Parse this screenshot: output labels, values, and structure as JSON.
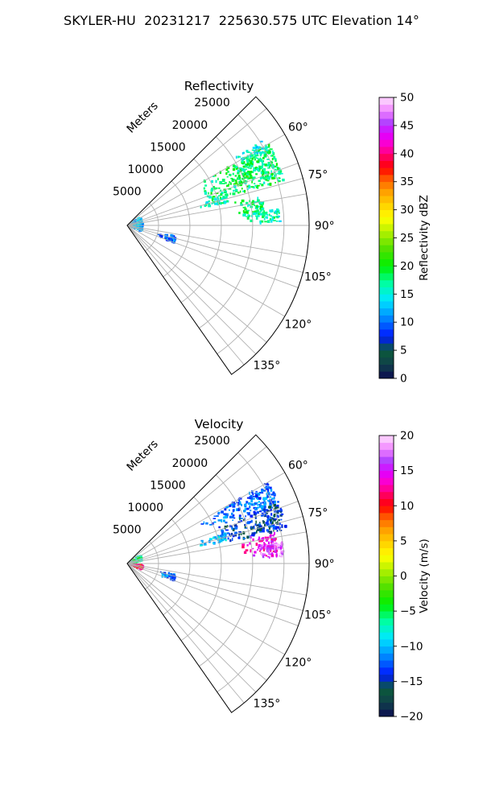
{
  "figure": {
    "title": "SKYLER-HU  20231217  225630.575 UTC Elevation 14°"
  },
  "chart_data": [
    {
      "type": "polar-sector",
      "title": "Reflectivity",
      "radial_label": "Meters",
      "radial_ticks": [
        5000,
        10000,
        15000,
        20000,
        25000
      ],
      "radial_tick_labels": [
        "5000",
        "10000",
        "15000",
        "20000",
        "25000"
      ],
      "r_max": 29000,
      "azimuth_range_deg": [
        45,
        145
      ],
      "azimuth_ticks_deg": [
        60,
        75,
        90,
        105,
        120,
        135
      ],
      "azimuth_tick_labels": [
        "60°",
        "75°",
        "90°",
        "105°",
        "120°",
        "135°"
      ],
      "grid": true,
      "colorbar": {
        "label": "Reflectivity dBZ",
        "range": [
          0,
          50
        ],
        "ticks": [
          0,
          5,
          10,
          15,
          20,
          25,
          30,
          35,
          40,
          45,
          50
        ],
        "tick_labels": [
          "0",
          "5",
          "10",
          "15",
          "20",
          "25",
          "30",
          "35",
          "40",
          "45",
          "50"
        ]
      },
      "echo_regions": [
        {
          "az_range": [
            60,
            74
          ],
          "r_range": [
            12500,
            26000
          ],
          "value": 18
        },
        {
          "az_range": [
            66,
            70
          ],
          "r_range": [
            16000,
            21500
          ],
          "value": 20
        },
        {
          "az_range": [
            73,
            77
          ],
          "r_range": [
            11500,
            16500
          ],
          "value": 16
        },
        {
          "az_range": [
            78,
            86
          ],
          "r_range": [
            17500,
            22000
          ],
          "value": 18
        },
        {
          "az_range": [
            84,
            89
          ],
          "r_range": [
            19000,
            24500
          ],
          "value": 16
        },
        {
          "az_range": [
            58,
            62
          ],
          "r_range": [
            20000,
            25500
          ],
          "value": 15
        },
        {
          "az_range": [
            60,
            110
          ],
          "r_range": [
            300,
            2500
          ],
          "value": 12
        },
        {
          "az_range": [
            103,
            110
          ],
          "r_range": [
            5000,
            8000
          ],
          "value": 10
        }
      ]
    },
    {
      "type": "polar-sector",
      "title": "Velocity",
      "radial_label": "Meters",
      "radial_ticks": [
        5000,
        10000,
        15000,
        20000,
        25000
      ],
      "radial_tick_labels": [
        "5000",
        "10000",
        "15000",
        "20000",
        "25000"
      ],
      "r_max": 29000,
      "azimuth_range_deg": [
        45,
        145
      ],
      "azimuth_ticks_deg": [
        60,
        75,
        90,
        105,
        120,
        135
      ],
      "azimuth_tick_labels": [
        "60°",
        "75°",
        "90°",
        "105°",
        "120°",
        "135°"
      ],
      "grid": true,
      "colorbar": {
        "label": "Velocity (m/s)",
        "range": [
          -20,
          20
        ],
        "ticks": [
          -20,
          -15,
          -10,
          -5,
          0,
          5,
          10,
          15,
          20
        ],
        "tick_labels": [
          "−20",
          "−15",
          "−10",
          "−5",
          "0",
          "5",
          "10",
          "15",
          "20"
        ]
      },
      "echo_regions": [
        {
          "az_range": [
            60,
            68
          ],
          "r_range": [
            12500,
            26000
          ],
          "value": -12
        },
        {
          "az_range": [
            68,
            78
          ],
          "r_range": [
            14000,
            26000
          ],
          "value": -14
        },
        {
          "az_range": [
            73,
            77
          ],
          "r_range": [
            11500,
            16500
          ],
          "value": -10
        },
        {
          "az_range": [
            78,
            87
          ],
          "r_range": [
            18500,
            24000
          ],
          "value": 14
        },
        {
          "az_range": [
            82,
            88
          ],
          "r_range": [
            20000,
            25000
          ],
          "value": 17
        },
        {
          "az_range": [
            60,
            80
          ],
          "r_range": [
            300,
            2500
          ],
          "value": -6
        },
        {
          "az_range": [
            95,
            112
          ],
          "r_range": [
            300,
            2500
          ],
          "value": 11
        },
        {
          "az_range": [
            103,
            110
          ],
          "r_range": [
            5000,
            8000
          ],
          "value": -12
        }
      ]
    }
  ]
}
